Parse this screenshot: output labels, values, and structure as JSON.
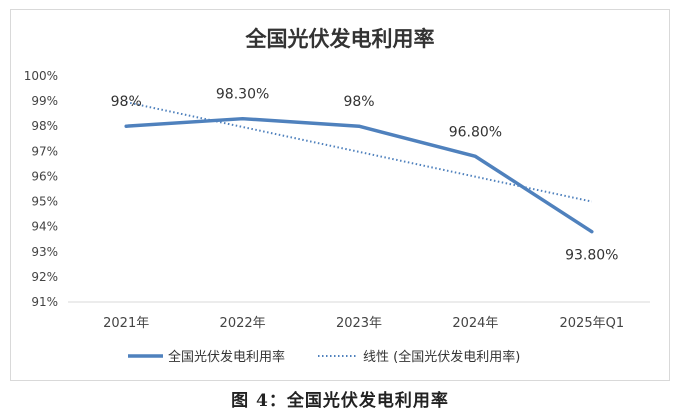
{
  "caption": "图 4：全国光伏发电利用率",
  "chart_data": {
    "type": "line",
    "title": "全国光伏发电利用率",
    "categories": [
      "2021年",
      "2022年",
      "2023年",
      "2024年",
      "2025年Q1"
    ],
    "series": [
      {
        "name": "全国光伏发电利用率",
        "values": [
          98,
          98.3,
          98,
          96.8,
          93.8
        ],
        "data_labels": [
          "98%",
          "98.30%",
          "98%",
          "96.80%",
          "93.80%"
        ],
        "color": "#4f81bd"
      }
    ],
    "trendline": {
      "name": "线性 (全国光伏发电利用率)",
      "type": "linear",
      "color": "#4f81bd",
      "style": "dotted"
    },
    "ylim": [
      91,
      100
    ],
    "yticks": [
      91,
      92,
      93,
      94,
      95,
      96,
      97,
      98,
      99,
      100
    ],
    "ytick_labels": [
      "91%",
      "92%",
      "93%",
      "94%",
      "95%",
      "96%",
      "97%",
      "98%",
      "99%",
      "100%"
    ],
    "grid": false,
    "legend": "bottom"
  }
}
